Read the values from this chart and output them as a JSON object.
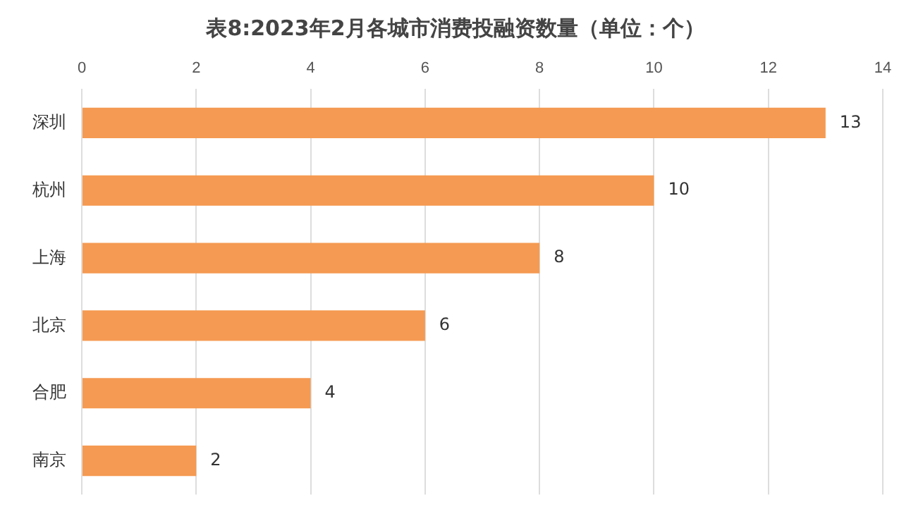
{
  "chart_data": {
    "type": "bar",
    "orientation": "horizontal",
    "title": "表8:2023年2月各城市消费投融资数量（单位：个）",
    "categories": [
      "深圳",
      "杭州",
      "上海",
      "北京",
      "合肥",
      "南京"
    ],
    "values": [
      13,
      10,
      8,
      6,
      4,
      2
    ],
    "color": "#f59a52",
    "xlim": [
      0,
      14
    ],
    "xticks": [
      0,
      2,
      4,
      6,
      8,
      10,
      12,
      14
    ],
    "grid": "x",
    "legend": false,
    "data_labels": true
  }
}
